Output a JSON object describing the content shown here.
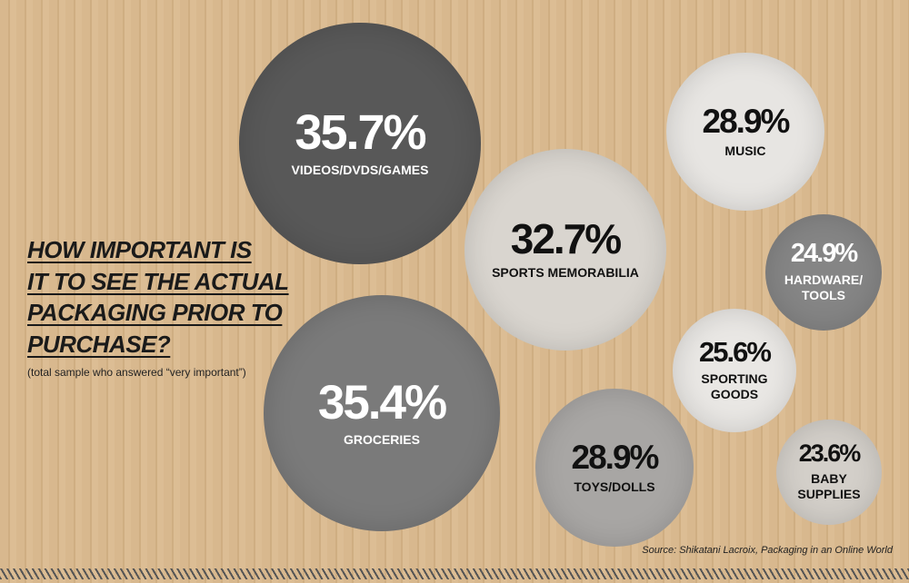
{
  "chart_data": {
    "type": "bubble",
    "title": "HOW IMPORTANT IS\n IT TO SEE THE ACTUAL\nPACKAGING PRIOR TO\nPURCHASE?",
    "subtitle": "(total sample who answered “very important”)",
    "source": "Source: Shikatani Lacroix, Packaging in an Online World",
    "categories": [
      "VIDEOS/DVDS/GAMES",
      "GROCERIES",
      "SPORTS MEMORABILIA",
      "MUSIC",
      "TOYS/DOLLS",
      "HARDWARE/\nTOOLS",
      "SPORTING\nGOODS",
      "BABY\nSUPPLIES"
    ],
    "values": [
      35.7,
      35.4,
      32.7,
      28.9,
      28.9,
      24.9,
      25.6,
      23.6
    ],
    "value_labels": [
      "35.7%",
      "35.4%",
      "32.7%",
      "28.9%",
      "28.9%",
      "24.9%",
      "25.6%",
      "23.6%"
    ],
    "colors": [
      "#585858",
      "#7a7a7a",
      "#d9d5cf",
      "#e7e5e2",
      "#a8a6a4",
      "#858585",
      "#e9e7e4",
      "#d3cfc9"
    ]
  }
}
